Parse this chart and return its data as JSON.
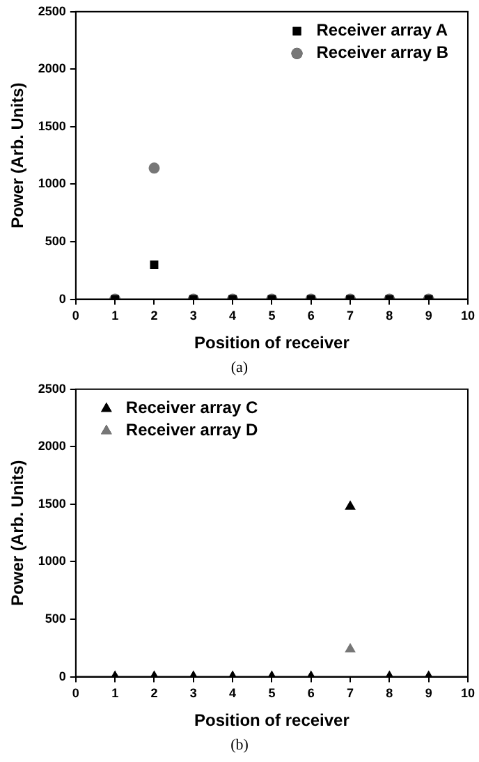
{
  "chart_data": [
    {
      "type": "scatter",
      "xlabel": "Position of receiver",
      "ylabel": "Power (Arb. Units)",
      "xlim": [
        0,
        10
      ],
      "xticks": [
        0,
        1,
        2,
        3,
        4,
        5,
        6,
        7,
        8,
        9,
        10
      ],
      "ylim": [
        0,
        2500
      ],
      "yticks": [
        0,
        500,
        1000,
        1500,
        2000,
        2500
      ],
      "grid": false,
      "legend": "top right",
      "annotations": [
        "(a)"
      ],
      "series": [
        {
          "name": "Receiver array A",
          "color": "#000000",
          "marker": "square",
          "x": [
            1,
            2,
            3,
            4,
            5,
            6,
            7,
            8,
            9
          ],
          "values": [
            0,
            300,
            0,
            0,
            0,
            0,
            0,
            0,
            0
          ]
        },
        {
          "name": "Receiver array B",
          "color": "#777777",
          "marker": "circle",
          "x": [
            1,
            2,
            3,
            4,
            5,
            6,
            7,
            8,
            9
          ],
          "values": [
            0,
            1140,
            0,
            0,
            0,
            0,
            0,
            0,
            0
          ]
        }
      ]
    },
    {
      "type": "scatter",
      "xlabel": "Position of receiver",
      "ylabel": "Power (Arb. Units)",
      "xlim": [
        0,
        10
      ],
      "xticks": [
        0,
        1,
        2,
        3,
        4,
        5,
        6,
        7,
        8,
        9,
        10
      ],
      "ylim": [
        0,
        2500
      ],
      "yticks": [
        0,
        500,
        1000,
        1500,
        2000,
        2500
      ],
      "grid": false,
      "legend": "top left",
      "annotations": [
        "(b)"
      ],
      "series": [
        {
          "name": "Receiver array C",
          "color": "#000000",
          "marker": "triangle",
          "x": [
            1,
            2,
            3,
            4,
            5,
            6,
            7,
            8,
            9
          ],
          "values": [
            0,
            0,
            0,
            0,
            0,
            0,
            1480,
            0,
            0
          ]
        },
        {
          "name": "Receiver array D",
          "color": "#777777",
          "marker": "triangle",
          "x": [
            1,
            2,
            3,
            4,
            5,
            6,
            7,
            8,
            9
          ],
          "values": [
            0,
            0,
            0,
            0,
            0,
            0,
            240,
            0,
            0
          ]
        }
      ]
    }
  ]
}
